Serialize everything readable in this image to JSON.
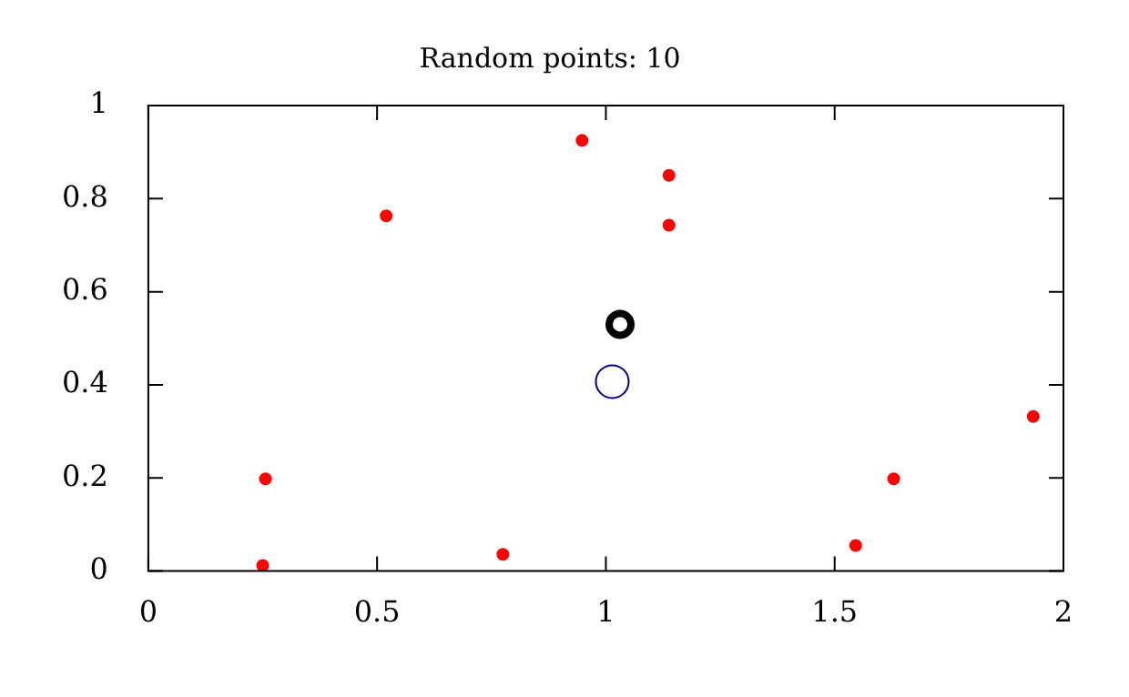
{
  "chart_data": {
    "type": "scatter",
    "title": "Random points: 10",
    "marker": "circle",
    "grid": false,
    "legend": false,
    "series": [
      {
        "color": "#ff0000",
        "x": [
          0.256,
          0.25,
          0.52,
          0.775,
          0.948,
          1.138,
          1.138,
          1.546,
          1.629,
          1.934
        ],
        "values": [
          0.198,
          0.012,
          0.763,
          0.036,
          0.925,
          0.85,
          0.743,
          0.055,
          0.198,
          0.332
        ]
      },
      {
        "color": "#000000",
        "x": [
          1.031
        ],
        "values": [
          0.53
        ]
      },
      {
        "color": "#000080",
        "x": [
          1.014
        ],
        "values": [
          0.407
        ]
      }
    ],
    "xlim": [
      0,
      2
    ],
    "xticks": [
      0,
      0.5,
      1,
      1.5,
      2
    ],
    "ylim": [
      0,
      1
    ],
    "yticks": [
      0,
      0.2,
      0.4,
      0.6,
      0.8,
      1
    ]
  }
}
